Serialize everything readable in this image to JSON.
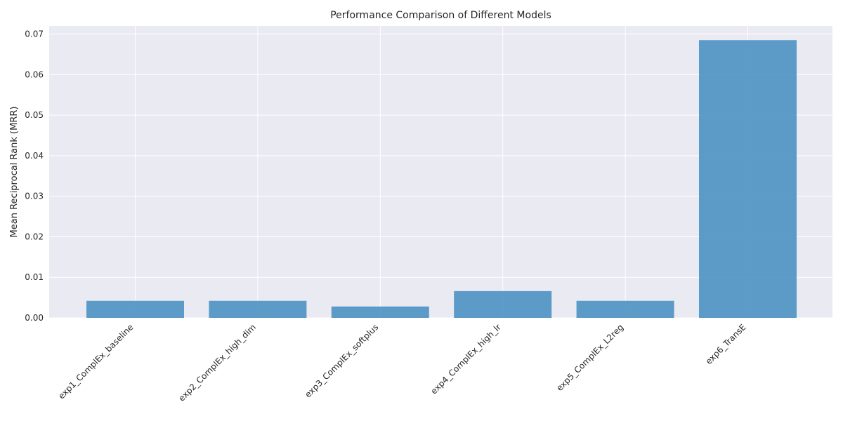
{
  "chart_data": {
    "type": "bar",
    "title": "Performance Comparison of Different Models",
    "xlabel": "",
    "ylabel": "Mean Reciprocal Rank (MRR)",
    "categories": [
      "exp1_ComplEx_baseline",
      "exp2_ComplEx_high_dim",
      "exp3_ComplEx_softplus",
      "exp4_ComplEx_high_lr",
      "exp5_ComplEx_L2reg",
      "exp6_TransE"
    ],
    "values": [
      0.0042,
      0.0042,
      0.0028,
      0.0066,
      0.0042,
      0.0685
    ],
    "ylim": [
      0,
      0.072
    ],
    "yticks": [
      0.0,
      0.01,
      0.02,
      0.03,
      0.04,
      0.05,
      0.06,
      0.07
    ],
    "ytick_labels": [
      "0.00",
      "0.01",
      "0.02",
      "0.03",
      "0.04",
      "0.05",
      "0.06",
      "0.07"
    ],
    "grid": true,
    "legend": "none",
    "colors": {
      "bar": "#4c92c3",
      "background": "#eaeaf2",
      "grid": "#ffffff",
      "text": "#262626"
    }
  }
}
